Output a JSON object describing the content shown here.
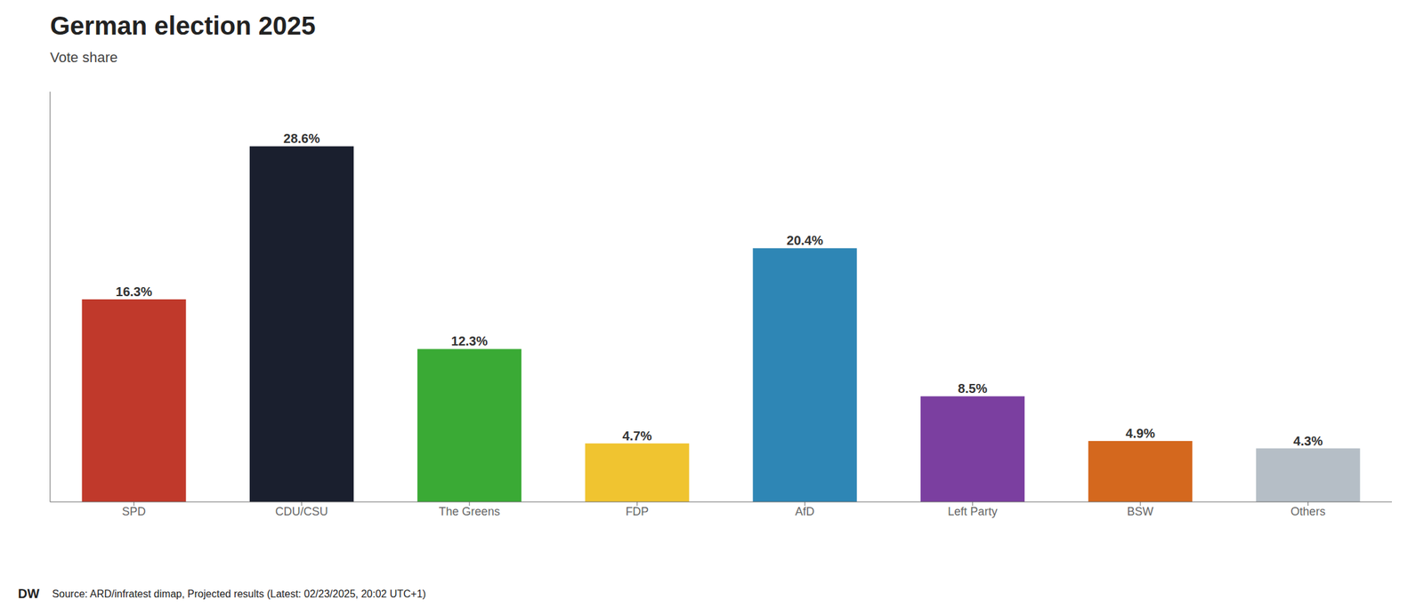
{
  "chart_data": {
    "type": "bar",
    "title": "German election 2025",
    "subtitle": "Vote share",
    "categories": [
      "SPD",
      "CDU/CSU",
      "The Greens",
      "FDP",
      "AfD",
      "Left Party",
      "BSW",
      "Others"
    ],
    "values": [
      16.3,
      28.6,
      12.3,
      4.7,
      20.4,
      8.5,
      4.9,
      4.3
    ],
    "value_labels": [
      "16.3%",
      "28.6%",
      "12.3%",
      "4.7%",
      "20.4%",
      "8.5%",
      "4.9%",
      "4.3%"
    ],
    "colors": [
      "#c0392b",
      "#1a1f2e",
      "#3aaa35",
      "#f0c430",
      "#2e86b5",
      "#7b3fa0",
      "#d4681e",
      "#b5bec6"
    ],
    "ylim": [
      0,
      33
    ],
    "yticks": [],
    "grid": false,
    "data_labels": true,
    "tick_labels": "x",
    "annotations": [
      "Source: ARD/infratest dimap, Projected results (Latest: 02/23/2025, 20:02 UTC+1)",
      "DW"
    ]
  }
}
